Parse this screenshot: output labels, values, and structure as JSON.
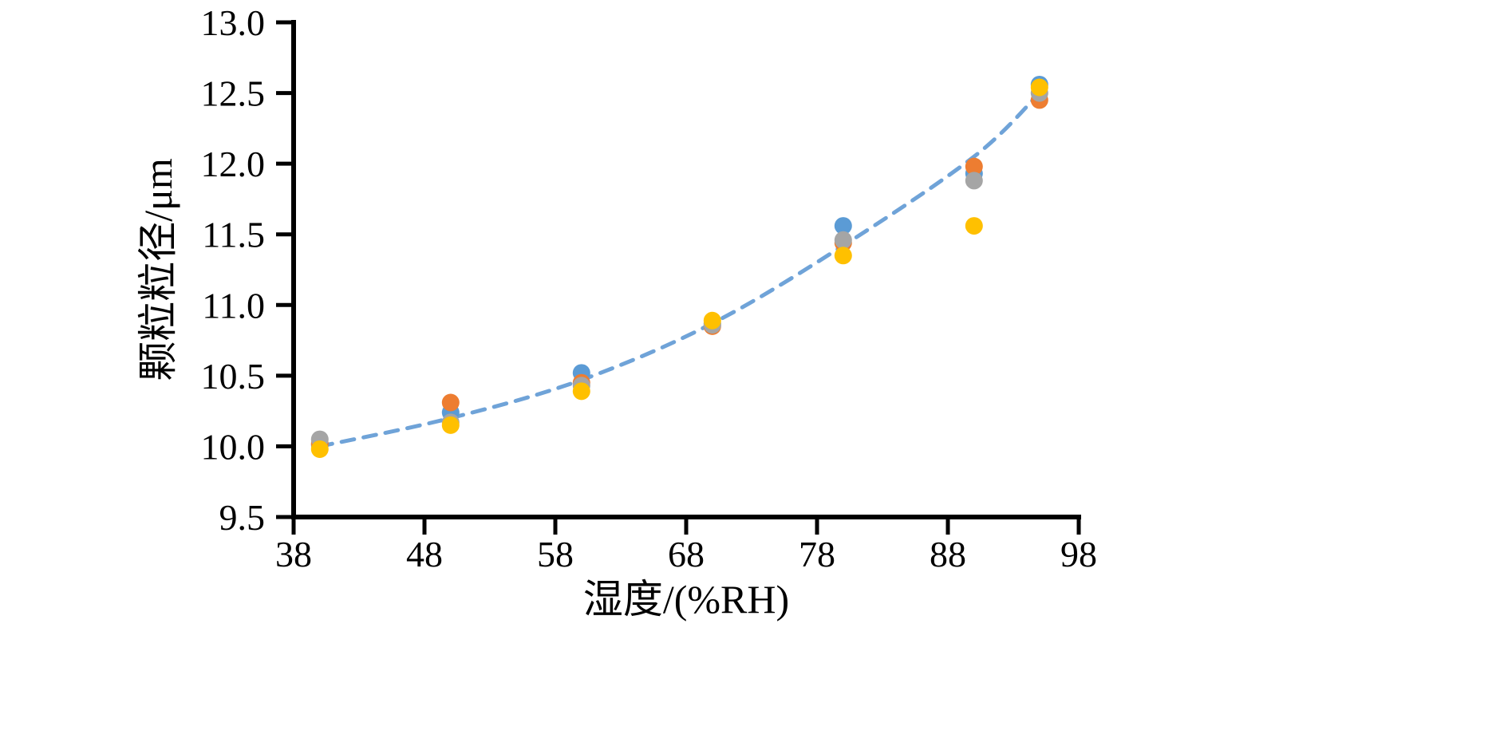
{
  "chart_data": {
    "type": "scatter",
    "title": "",
    "xlabel": "湿度/(%RH)",
    "ylabel": "颗粒粒径/μm",
    "xlim": [
      38,
      98
    ],
    "ylim": [
      9.5,
      13.0
    ],
    "x_ticks": [
      38,
      48,
      58,
      68,
      78,
      88,
      98
    ],
    "y_ticks": [
      9.5,
      10.0,
      10.5,
      11.0,
      11.5,
      12.0,
      12.5,
      13.0
    ],
    "grid": false,
    "legend": "none",
    "axis_color": "#000000",
    "background": "#ffffff",
    "series": [
      {
        "name": "series-blue",
        "color": "#5B9BD5",
        "points": [
          [
            40,
            10.01
          ],
          [
            50,
            10.24
          ],
          [
            60,
            10.52
          ],
          [
            70,
            10.87
          ],
          [
            80,
            11.56
          ],
          [
            90,
            11.93
          ],
          [
            95,
            12.56
          ]
        ]
      },
      {
        "name": "series-orange",
        "color": "#ED7D31",
        "points": [
          [
            40,
            10.02
          ],
          [
            50,
            10.31
          ],
          [
            60,
            10.45
          ],
          [
            70,
            10.85
          ],
          [
            80,
            11.44
          ],
          [
            90,
            11.98
          ],
          [
            95,
            12.45
          ]
        ]
      },
      {
        "name": "series-gray",
        "color": "#A5A5A5",
        "points": [
          [
            40,
            10.05
          ],
          [
            50,
            10.17
          ],
          [
            60,
            10.43
          ],
          [
            70,
            10.86
          ],
          [
            80,
            11.46
          ],
          [
            90,
            11.88
          ],
          [
            95,
            12.5
          ]
        ]
      },
      {
        "name": "series-yellow",
        "color": "#FFC000",
        "points": [
          [
            40,
            9.98
          ],
          [
            50,
            10.15
          ],
          [
            60,
            10.39
          ],
          [
            70,
            10.89
          ],
          [
            80,
            11.35
          ],
          [
            90,
            11.56
          ],
          [
            95,
            12.54
          ]
        ]
      }
    ],
    "trend_line": {
      "name": "fitted-trend",
      "color": "#6FA3D8",
      "dash": "16 12",
      "width": 5,
      "points": [
        [
          40,
          10.0
        ],
        [
          50,
          10.2
        ],
        [
          60,
          10.47
        ],
        [
          70,
          10.87
        ],
        [
          80,
          11.42
        ],
        [
          90,
          12.05
        ],
        [
          95,
          12.5
        ]
      ]
    }
  }
}
